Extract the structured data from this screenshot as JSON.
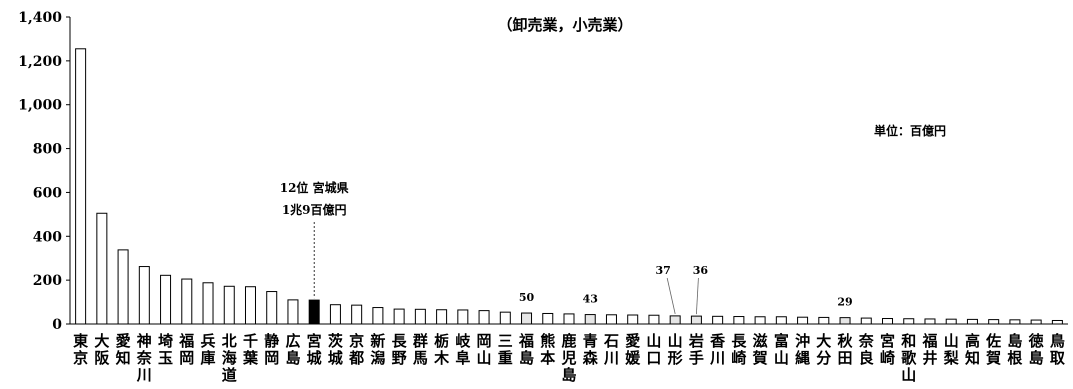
{
  "chart_data": {
    "type": "bar",
    "title": "（卸売業，小売業）",
    "unit_label": "単位：百億円",
    "ylim": [
      0,
      1400
    ],
    "yticks": [
      0,
      200,
      400,
      600,
      800,
      1000,
      1200,
      1400
    ],
    "ytick_labels": [
      "0",
      "200",
      "400",
      "600",
      "800",
      "1,000",
      "1,200",
      "1,400"
    ],
    "grid": false,
    "categories": [
      "東京",
      "大阪",
      "愛知",
      "神奈川",
      "埼玉",
      "福岡",
      "兵庫",
      "北海道",
      "千葉",
      "静岡",
      "広島",
      "宮城",
      "茨城",
      "京都",
      "新潟",
      "長野",
      "群馬",
      "栃木",
      "岐阜",
      "岡山",
      "三重",
      "福島",
      "熊本",
      "鹿児島",
      "青森",
      "石川",
      "愛媛",
      "山口",
      "山形",
      "岩手",
      "香川",
      "長崎",
      "滋賀",
      "富山",
      "沖縄",
      "大分",
      "秋田",
      "奈良",
      "宮崎",
      "和歌山",
      "福井",
      "山梨",
      "高知",
      "佐賀",
      "島根",
      "徳島",
      "鳥取"
    ],
    "values": [
      1255,
      505,
      338,
      262,
      222,
      205,
      188,
      172,
      170,
      148,
      110,
      109,
      88,
      86,
      75,
      68,
      67,
      65,
      64,
      61,
      54,
      50,
      48,
      46,
      43,
      42,
      41,
      40,
      37,
      36,
      35,
      34,
      33,
      33,
      31,
      30,
      29,
      27,
      25,
      24,
      23,
      22,
      21,
      20,
      19,
      18,
      16
    ],
    "highlight_index": 11,
    "highlight_label_lines": [
      "12位 宮城県",
      "1兆9百億円"
    ],
    "annotated": [
      {
        "index": 21,
        "label": "50"
      },
      {
        "index": 24,
        "label": "43"
      },
      {
        "index": 28,
        "label": "37"
      },
      {
        "index": 29,
        "label": "36"
      },
      {
        "index": 36,
        "label": "29"
      }
    ],
    "colors": {
      "bar_fill": "#ffffff",
      "bar_stroke": "#000000",
      "highlight": "#000000",
      "annotated_fill": "#e6e6e6"
    }
  }
}
